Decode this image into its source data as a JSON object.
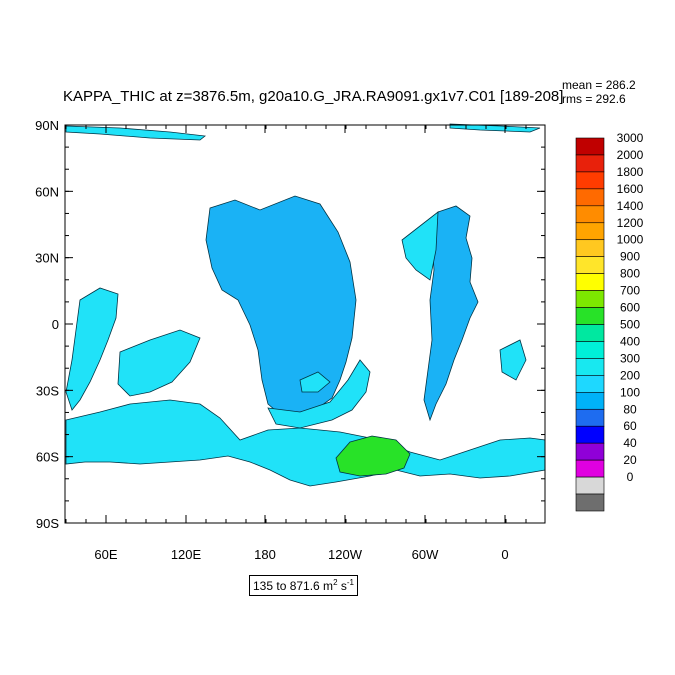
{
  "title": "KAPPA_THIC at z=3876.5m, g20a10.G_JRA.RA9091.gx1v7.C01 [189-208]",
  "stats": {
    "mean_label": "mean = 286.2",
    "rms_label": "rms = 292.6"
  },
  "range_note": {
    "prefix": "135 to 871.6 m",
    "exp1": "2",
    "mid": " s",
    "exp2": "-1"
  },
  "lat_labels": [
    "90N",
    "60N",
    "30N",
    "0",
    "30S",
    "60S",
    "90S"
  ],
  "lon_labels": [
    "60E",
    "120E",
    "180",
    "120W",
    "60W",
    "0"
  ],
  "colorbar": {
    "labels": [
      "3000",
      "2000",
      "1800",
      "1600",
      "1400",
      "1200",
      "1000",
      "900",
      "800",
      "700",
      "600",
      "500",
      "400",
      "300",
      "200",
      "100",
      "80",
      "60",
      "40",
      "20",
      "0"
    ],
    "colors": [
      "#c00000",
      "#e8210b",
      "#ff3c00",
      "#ff6a00",
      "#ff8c00",
      "#ffa400",
      "#ffc820",
      "#ffe52a",
      "#ffff00",
      "#7de800",
      "#28e228",
      "#00e8a0",
      "#00f0d8",
      "#18e8f0",
      "#1ed8ff",
      "#00b2f8",
      "#1e6cf0",
      "#0000ff",
      "#9000d8",
      "#e000e0",
      "#d8d8d8",
      "#6e6e6e"
    ]
  },
  "map": {
    "ocean_fill": "#1ab2f5",
    "light_fill": "#20e2f8",
    "land_fill": "#ffffff",
    "contour_color": "#003344"
  }
}
